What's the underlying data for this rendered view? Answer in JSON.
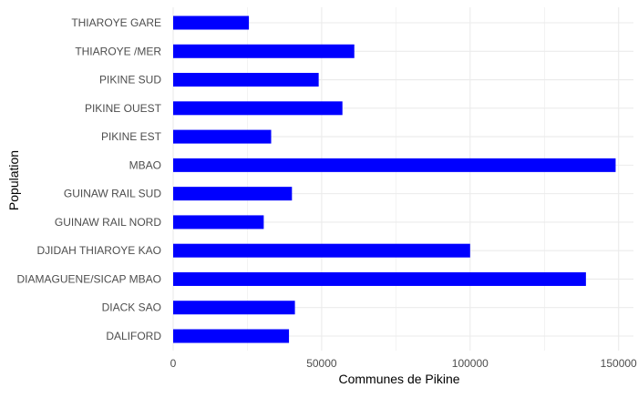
{
  "chart_data": {
    "type": "bar",
    "orientation": "horizontal",
    "title": "",
    "xlabel": "Communes de Pikine",
    "ylabel": "Population",
    "xlim": [
      0,
      155000
    ],
    "x_ticks": [
      0,
      50000,
      100000,
      150000
    ],
    "x_tick_labels": [
      "0",
      "50000",
      "100000",
      "150000"
    ],
    "grid": true,
    "bar_color": "#0000ff",
    "grid_color": "#ebebeb",
    "categories": [
      "DALIFORD",
      "DIACK SAO",
      "DIAMAGUENE/SICAP MBAO",
      "DJIDAH THIAROYE KAO",
      "GUINAW RAIL NORD",
      "GUINAW RAIL SUD",
      "MBAO",
      "PIKINE EST",
      "PIKINE OUEST",
      "PIKINE SUD",
      "THIAROYE /MER",
      "THIAROYE GARE"
    ],
    "values": [
      39000,
      41000,
      139000,
      100000,
      30500,
      40000,
      149000,
      33000,
      57000,
      49000,
      61000,
      25500
    ]
  }
}
